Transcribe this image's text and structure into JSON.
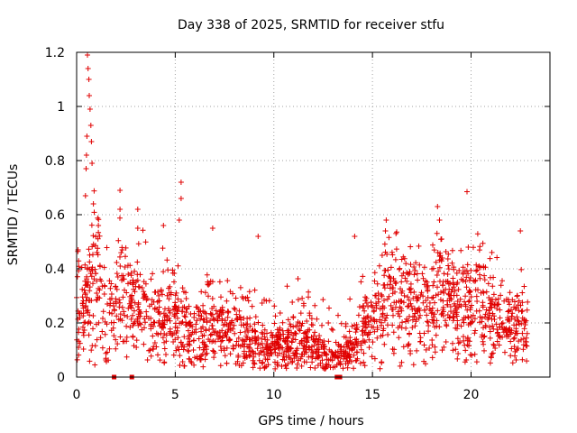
{
  "chart_data": {
    "type": "scatter",
    "title": "Day 338 of 2025, SRMTID for receiver stfu",
    "xlabel": "GPS time / hours",
    "ylabel": "SRMTID / TECUs",
    "xlim": [
      0,
      24
    ],
    "ylim": [
      0,
      1.2
    ],
    "x_ticks": [
      0,
      5,
      10,
      15,
      20
    ],
    "x_tick_labels": [
      "0",
      "5",
      "10",
      "15",
      "20"
    ],
    "y_ticks": [
      0,
      0.2,
      0.4,
      0.6,
      0.8,
      1.0,
      1.2
    ],
    "y_tick_labels": [
      "0",
      "0.2",
      "0.4",
      "0.6",
      "0.8",
      "1",
      "1.2"
    ],
    "grid": true,
    "series": [
      {
        "name": "SRMTID",
        "color": "#e00000",
        "marker": "plus",
        "profile": [
          [
            0.0,
            0.3
          ],
          [
            0.3,
            0.22
          ],
          [
            0.6,
            0.28
          ],
          [
            0.9,
            0.4
          ],
          [
            1.2,
            0.32
          ],
          [
            1.5,
            0.22
          ],
          [
            1.8,
            0.2
          ],
          [
            2.1,
            0.28
          ],
          [
            2.4,
            0.3
          ],
          [
            2.8,
            0.26
          ],
          [
            3.2,
            0.26
          ],
          [
            3.6,
            0.24
          ],
          [
            4.0,
            0.22
          ],
          [
            4.5,
            0.2
          ],
          [
            5.0,
            0.22
          ],
          [
            5.5,
            0.18
          ],
          [
            6.0,
            0.18
          ],
          [
            6.5,
            0.2
          ],
          [
            7.0,
            0.18
          ],
          [
            7.5,
            0.17
          ],
          [
            8.0,
            0.17
          ],
          [
            8.5,
            0.17
          ],
          [
            9.0,
            0.14
          ],
          [
            9.5,
            0.1
          ],
          [
            10.0,
            0.12
          ],
          [
            10.5,
            0.11
          ],
          [
            11.0,
            0.12
          ],
          [
            11.5,
            0.13
          ],
          [
            12.0,
            0.13
          ],
          [
            12.5,
            0.09
          ],
          [
            13.0,
            0.07
          ],
          [
            13.5,
            0.08
          ],
          [
            14.0,
            0.12
          ],
          [
            14.5,
            0.18
          ],
          [
            15.0,
            0.2
          ],
          [
            15.5,
            0.3
          ],
          [
            16.0,
            0.3
          ],
          [
            16.5,
            0.3
          ],
          [
            17.0,
            0.28
          ],
          [
            17.5,
            0.24
          ],
          [
            18.0,
            0.24
          ],
          [
            18.5,
            0.3
          ],
          [
            19.0,
            0.26
          ],
          [
            19.5,
            0.24
          ],
          [
            20.0,
            0.28
          ],
          [
            20.5,
            0.26
          ],
          [
            21.0,
            0.22
          ],
          [
            21.5,
            0.2
          ],
          [
            22.0,
            0.18
          ],
          [
            22.5,
            0.2
          ],
          [
            22.9,
            0.18
          ]
        ],
        "spikes": [
          [
            0.55,
            1.19
          ],
          [
            0.58,
            1.14
          ],
          [
            0.62,
            1.1
          ],
          [
            0.64,
            1.04
          ],
          [
            0.68,
            0.99
          ],
          [
            0.72,
            0.93
          ],
          [
            0.52,
            0.89
          ],
          [
            0.75,
            0.87
          ],
          [
            0.5,
            0.82
          ],
          [
            0.78,
            0.79
          ],
          [
            0.48,
            0.77
          ],
          [
            0.45,
            0.67
          ],
          [
            0.85,
            0.64
          ],
          [
            2.2,
            0.69
          ],
          [
            2.2,
            0.62
          ],
          [
            3.1,
            0.62
          ],
          [
            3.1,
            0.55
          ],
          [
            5.3,
            0.72
          ],
          [
            5.3,
            0.66
          ],
          [
            5.2,
            0.58
          ],
          [
            6.9,
            0.55
          ],
          [
            9.2,
            0.52
          ],
          [
            14.1,
            0.52
          ],
          [
            15.7,
            0.58
          ],
          [
            18.3,
            0.63
          ],
          [
            18.4,
            0.58
          ],
          [
            22.5,
            0.54
          ],
          [
            4.4,
            0.56
          ],
          [
            1.1,
            0.56
          ]
        ],
        "bottom_markers": [
          1.9,
          2.8,
          13.2,
          13.35
        ]
      }
    ]
  }
}
